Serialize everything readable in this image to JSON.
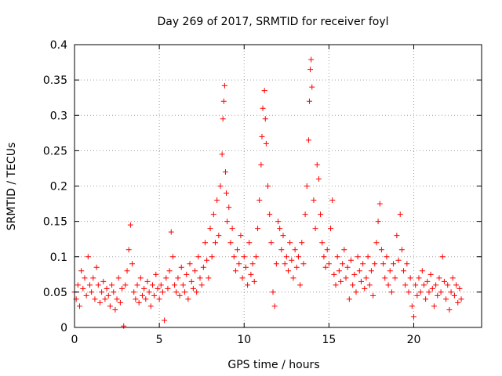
{
  "chart_data": {
    "type": "scatter",
    "title": "Day 269 of 2017, SRMTID for receiver foyl",
    "xlabel": "GPS time / hours",
    "ylabel": "SRMTID / TECUs",
    "xlim": [
      0,
      24
    ],
    "ylim": [
      0,
      0.4
    ],
    "x_ticks": [
      {
        "value": 0,
        "label": "0"
      },
      {
        "value": 5,
        "label": "5"
      },
      {
        "value": 10,
        "label": "10"
      },
      {
        "value": 15,
        "label": "15"
      },
      {
        "value": 20,
        "label": "20"
      }
    ],
    "y_ticks": [
      {
        "value": 0,
        "label": "0"
      },
      {
        "value": 0.05,
        "label": "0.05"
      },
      {
        "value": 0.1,
        "label": "0.1"
      },
      {
        "value": 0.15,
        "label": "0.15"
      },
      {
        "value": 0.2,
        "label": "0.2"
      },
      {
        "value": 0.25,
        "label": "0.25"
      },
      {
        "value": 0.3,
        "label": "0.3"
      },
      {
        "value": 0.35,
        "label": "0.35"
      },
      {
        "value": 0.4,
        "label": "0.4"
      }
    ],
    "grid": true,
    "grid_style": "dotted",
    "marker": "+",
    "color": "#ff0000",
    "series": [
      {
        "points": [
          [
            0.0,
            0.05
          ],
          [
            0.1,
            0.04
          ],
          [
            0.2,
            0.06
          ],
          [
            0.3,
            0.03
          ],
          [
            0.4,
            0.08
          ],
          [
            0.5,
            0.055
          ],
          [
            0.6,
            0.07
          ],
          [
            0.7,
            0.045
          ],
          [
            0.8,
            0.1
          ],
          [
            0.9,
            0.06
          ],
          [
            1.0,
            0.05
          ],
          [
            1.1,
            0.07
          ],
          [
            1.2,
            0.04
          ],
          [
            1.3,
            0.085
          ],
          [
            1.4,
            0.06
          ],
          [
            1.5,
            0.035
          ],
          [
            1.6,
            0.05
          ],
          [
            1.7,
            0.065
          ],
          [
            1.8,
            0.04
          ],
          [
            1.9,
            0.055
          ],
          [
            2.0,
            0.045
          ],
          [
            2.1,
            0.03
          ],
          [
            2.2,
            0.06
          ],
          [
            2.3,
            0.05
          ],
          [
            2.4,
            0.025
          ],
          [
            2.5,
            0.04
          ],
          [
            2.6,
            0.07
          ],
          [
            2.7,
            0.035
          ],
          [
            2.8,
            0.055
          ],
          [
            2.9,
            0.002
          ],
          [
            3.0,
            0.06
          ],
          [
            3.1,
            0.08
          ],
          [
            3.2,
            0.11
          ],
          [
            3.3,
            0.145
          ],
          [
            3.4,
            0.09
          ],
          [
            3.5,
            0.05
          ],
          [
            3.6,
            0.04
          ],
          [
            3.7,
            0.06
          ],
          [
            3.8,
            0.035
          ],
          [
            3.9,
            0.07
          ],
          [
            4.0,
            0.045
          ],
          [
            4.1,
            0.055
          ],
          [
            4.2,
            0.04
          ],
          [
            4.3,
            0.065
          ],
          [
            4.4,
            0.05
          ],
          [
            4.5,
            0.03
          ],
          [
            4.6,
            0.06
          ],
          [
            4.7,
            0.045
          ],
          [
            4.8,
            0.075
          ],
          [
            4.9,
            0.055
          ],
          [
            5.0,
            0.04
          ],
          [
            5.1,
            0.06
          ],
          [
            5.2,
            0.05
          ],
          [
            5.3,
            0.01
          ],
          [
            5.4,
            0.07
          ],
          [
            5.5,
            0.055
          ],
          [
            5.6,
            0.08
          ],
          [
            5.7,
            0.135
          ],
          [
            5.8,
            0.1
          ],
          [
            5.9,
            0.06
          ],
          [
            6.0,
            0.05
          ],
          [
            6.1,
            0.07
          ],
          [
            6.2,
            0.045
          ],
          [
            6.3,
            0.085
          ],
          [
            6.4,
            0.06
          ],
          [
            6.5,
            0.05
          ],
          [
            6.6,
            0.075
          ],
          [
            6.7,
            0.04
          ],
          [
            6.8,
            0.09
          ],
          [
            6.9,
            0.065
          ],
          [
            7.0,
            0.055
          ],
          [
            7.1,
            0.08
          ],
          [
            7.2,
            0.05
          ],
          [
            7.3,
            0.1
          ],
          [
            7.4,
            0.07
          ],
          [
            7.5,
            0.06
          ],
          [
            7.6,
            0.085
          ],
          [
            7.7,
            0.12
          ],
          [
            7.8,
            0.095
          ],
          [
            7.9,
            0.07
          ],
          [
            8.0,
            0.14
          ],
          [
            8.1,
            0.1
          ],
          [
            8.2,
            0.16
          ],
          [
            8.3,
            0.12
          ],
          [
            8.4,
            0.18
          ],
          [
            8.5,
            0.13
          ],
          [
            8.6,
            0.2
          ],
          [
            8.7,
            0.245
          ],
          [
            8.75,
            0.295
          ],
          [
            8.8,
            0.32
          ],
          [
            8.85,
            0.342
          ],
          [
            8.9,
            0.22
          ],
          [
            8.95,
            0.19
          ],
          [
            9.0,
            0.15
          ],
          [
            9.1,
            0.17
          ],
          [
            9.2,
            0.12
          ],
          [
            9.3,
            0.14
          ],
          [
            9.4,
            0.1
          ],
          [
            9.5,
            0.08
          ],
          [
            9.6,
            0.11
          ],
          [
            9.7,
            0.09
          ],
          [
            9.8,
            0.13
          ],
          [
            9.9,
            0.07
          ],
          [
            10.0,
            0.1
          ],
          [
            10.1,
            0.085
          ],
          [
            10.2,
            0.06
          ],
          [
            10.3,
            0.12
          ],
          [
            10.4,
            0.075
          ],
          [
            10.5,
            0.09
          ],
          [
            10.6,
            0.065
          ],
          [
            10.7,
            0.1
          ],
          [
            10.8,
            0.14
          ],
          [
            10.9,
            0.18
          ],
          [
            11.0,
            0.23
          ],
          [
            11.05,
            0.27
          ],
          [
            11.1,
            0.31
          ],
          [
            11.2,
            0.335
          ],
          [
            11.25,
            0.295
          ],
          [
            11.3,
            0.26
          ],
          [
            11.4,
            0.2
          ],
          [
            11.5,
            0.16
          ],
          [
            11.6,
            0.12
          ],
          [
            11.7,
            0.05
          ],
          [
            11.8,
            0.03
          ],
          [
            11.9,
            0.09
          ],
          [
            12.0,
            0.15
          ],
          [
            12.1,
            0.14
          ],
          [
            12.2,
            0.11
          ],
          [
            12.3,
            0.13
          ],
          [
            12.4,
            0.09
          ],
          [
            12.5,
            0.1
          ],
          [
            12.6,
            0.08
          ],
          [
            12.7,
            0.12
          ],
          [
            12.8,
            0.095
          ],
          [
            12.9,
            0.07
          ],
          [
            13.0,
            0.11
          ],
          [
            13.1,
            0.085
          ],
          [
            13.2,
            0.1
          ],
          [
            13.3,
            0.06
          ],
          [
            13.4,
            0.12
          ],
          [
            13.5,
            0.09
          ],
          [
            13.6,
            0.16
          ],
          [
            13.7,
            0.2
          ],
          [
            13.8,
            0.265
          ],
          [
            13.85,
            0.32
          ],
          [
            13.9,
            0.365
          ],
          [
            13.95,
            0.379
          ],
          [
            14.0,
            0.34
          ],
          [
            14.1,
            0.18
          ],
          [
            14.2,
            0.14
          ],
          [
            14.3,
            0.23
          ],
          [
            14.4,
            0.21
          ],
          [
            14.5,
            0.16
          ],
          [
            14.6,
            0.12
          ],
          [
            14.7,
            0.1
          ],
          [
            14.8,
            0.085
          ],
          [
            14.9,
            0.11
          ],
          [
            15.0,
            0.09
          ],
          [
            15.1,
            0.14
          ],
          [
            15.2,
            0.18
          ],
          [
            15.3,
            0.075
          ],
          [
            15.4,
            0.06
          ],
          [
            15.5,
            0.1
          ],
          [
            15.6,
            0.08
          ],
          [
            15.7,
            0.065
          ],
          [
            15.8,
            0.09
          ],
          [
            15.9,
            0.11
          ],
          [
            16.0,
            0.07
          ],
          [
            16.1,
            0.085
          ],
          [
            16.2,
            0.04
          ],
          [
            16.3,
            0.095
          ],
          [
            16.4,
            0.06
          ],
          [
            16.5,
            0.075
          ],
          [
            16.6,
            0.05
          ],
          [
            16.7,
            0.1
          ],
          [
            16.8,
            0.08
          ],
          [
            16.9,
            0.065
          ],
          [
            17.0,
            0.09
          ],
          [
            17.1,
            0.055
          ],
          [
            17.2,
            0.07
          ],
          [
            17.3,
            0.1
          ],
          [
            17.4,
            0.06
          ],
          [
            17.5,
            0.08
          ],
          [
            17.6,
            0.045
          ],
          [
            17.7,
            0.09
          ],
          [
            17.8,
            0.12
          ],
          [
            17.9,
            0.15
          ],
          [
            18.0,
            0.175
          ],
          [
            18.1,
            0.11
          ],
          [
            18.2,
            0.09
          ],
          [
            18.3,
            0.07
          ],
          [
            18.4,
            0.1
          ],
          [
            18.5,
            0.06
          ],
          [
            18.6,
            0.08
          ],
          [
            18.7,
            0.05
          ],
          [
            18.8,
            0.09
          ],
          [
            18.9,
            0.07
          ],
          [
            19.0,
            0.13
          ],
          [
            19.1,
            0.095
          ],
          [
            19.2,
            0.16
          ],
          [
            19.3,
            0.11
          ],
          [
            19.4,
            0.08
          ],
          [
            19.5,
            0.06
          ],
          [
            19.6,
            0.09
          ],
          [
            19.7,
            0.05
          ],
          [
            19.8,
            0.07
          ],
          [
            19.9,
            0.03
          ],
          [
            20.0,
            0.015
          ],
          [
            20.1,
            0.06
          ],
          [
            20.2,
            0.045
          ],
          [
            20.3,
            0.07
          ],
          [
            20.4,
            0.05
          ],
          [
            20.5,
            0.08
          ],
          [
            20.6,
            0.06
          ],
          [
            20.7,
            0.04
          ],
          [
            20.8,
            0.065
          ],
          [
            20.9,
            0.05
          ],
          [
            21.0,
            0.075
          ],
          [
            21.1,
            0.055
          ],
          [
            21.2,
            0.03
          ],
          [
            21.3,
            0.06
          ],
          [
            21.4,
            0.045
          ],
          [
            21.5,
            0.07
          ],
          [
            21.6,
            0.05
          ],
          [
            21.7,
            0.1
          ],
          [
            21.8,
            0.065
          ],
          [
            21.9,
            0.04
          ],
          [
            22.0,
            0.06
          ],
          [
            22.1,
            0.025
          ],
          [
            22.2,
            0.05
          ],
          [
            22.3,
            0.07
          ],
          [
            22.4,
            0.045
          ],
          [
            22.5,
            0.06
          ],
          [
            22.6,
            0.035
          ],
          [
            22.7,
            0.055
          ],
          [
            22.8,
            0.04
          ]
        ]
      }
    ]
  }
}
